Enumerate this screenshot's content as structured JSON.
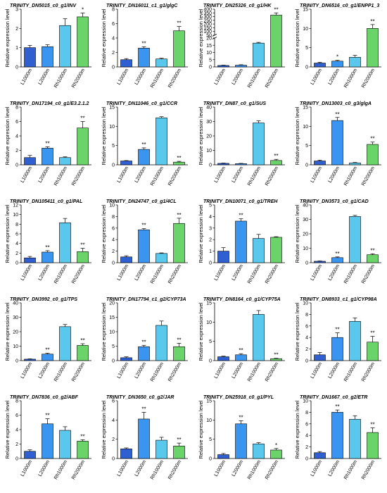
{
  "figure": {
    "ylabel": "Relative expression level",
    "categories": [
      "L1000m",
      "L2000m",
      "Rh1000m",
      "Rh2000m"
    ],
    "bar_colors": [
      "#2f5fd0",
      "#3a95f0",
      "#5ac8ec",
      "#6ad46a"
    ],
    "edge_color": "#000000"
  },
  "chart_data": [
    {
      "type": "bar",
      "title": "TRINITY_DN5015_c0_g1/INV",
      "categories": [
        "L1000m",
        "L2000m",
        "Rh1000m",
        "Rh2000m"
      ],
      "values": [
        1.0,
        1.05,
        2.15,
        2.6
      ],
      "errors": [
        0.12,
        0.1,
        0.35,
        0.2
      ],
      "significance": [
        "",
        "",
        "",
        "*"
      ],
      "ylim": [
        0,
        3
      ],
      "yticks": [
        0,
        1,
        2,
        3
      ]
    },
    {
      "type": "bar",
      "title": "TRINITY_DN16011_c1_g1/glgC",
      "categories": [
        "L1000m",
        "L2000m",
        "Rh1000m",
        "Rh2000m"
      ],
      "values": [
        1.0,
        2.6,
        1.1,
        5.0
      ],
      "errors": [
        0.15,
        0.2,
        0.1,
        0.6
      ],
      "significance": [
        "",
        "**",
        "",
        "**"
      ],
      "ylim": [
        0,
        8
      ],
      "yticks": [
        0,
        2,
        4,
        6,
        8
      ]
    },
    {
      "type": "bar",
      "title": "TRINITY_DN25326_c0_g1/HK",
      "categories": [
        "L1000m",
        "L2000m",
        "Rh1000m",
        "Rh2000m"
      ],
      "values": [
        1.0,
        1.2,
        16.5,
        320
      ],
      "errors": [
        0.2,
        0.3,
        0.5,
        30
      ],
      "significance": [
        "",
        "",
        "",
        "**"
      ],
      "ylim": [
        0,
        400
      ],
      "yticks": [
        0,
        5,
        10,
        15,
        20,
        50,
        100,
        150,
        200,
        250,
        300,
        350,
        400
      ],
      "axis_break": [
        20,
        50
      ]
    },
    {
      "type": "bar",
      "title": "TRINITY_DN6516_c0_g1/ENPP1_3",
      "categories": [
        "L1000m",
        "L2000m",
        "Rh1000m",
        "Rh2000m"
      ],
      "values": [
        1.0,
        1.5,
        2.5,
        10.0
      ],
      "errors": [
        0.2,
        0.2,
        0.5,
        1.0
      ],
      "significance": [
        "",
        "*",
        "",
        "**"
      ],
      "ylim": [
        0,
        15
      ],
      "yticks": [
        0,
        5,
        10,
        15
      ]
    },
    {
      "type": "bar",
      "title": "TRINITY_DN17194_c0_g1/E3.2.1.2",
      "categories": [
        "L1000m",
        "L2000m",
        "Rh1000m",
        "Rh2000m"
      ],
      "values": [
        1.0,
        2.3,
        1.0,
        5.1
      ],
      "errors": [
        0.3,
        0.2,
        0.1,
        0.9
      ],
      "significance": [
        "",
        "**",
        "",
        "**"
      ],
      "ylim": [
        0,
        8
      ],
      "yticks": [
        0,
        2,
        4,
        6,
        8
      ]
    },
    {
      "type": "bar",
      "title": "TRINITY_DN11046_c0_g1/CCR",
      "categories": [
        "L1000m",
        "L2000m",
        "Rh1000m",
        "Rh2000m"
      ],
      "values": [
        1.0,
        4.0,
        12.2,
        0.7
      ],
      "errors": [
        0.1,
        0.4,
        0.3,
        0.2
      ],
      "significance": [
        "",
        "**",
        "",
        "**"
      ],
      "ylim": [
        0,
        15
      ],
      "yticks": [
        0,
        5,
        10,
        15
      ]
    },
    {
      "type": "bar",
      "title": "TRINITY_DN87_c0_g1/SUS",
      "categories": [
        "L1000m",
        "L2000m",
        "Rh1000m",
        "Rh2000m"
      ],
      "values": [
        1.0,
        0.8,
        29.0,
        3.0
      ],
      "errors": [
        0.2,
        0.2,
        1.5,
        0.8
      ],
      "significance": [
        "",
        "",
        "",
        "**"
      ],
      "ylim": [
        0,
        40
      ],
      "yticks": [
        0,
        10,
        20,
        30,
        40
      ]
    },
    {
      "type": "bar",
      "title": "TRINITY_DN13003_c0_g3/glgA",
      "categories": [
        "L1000m",
        "L2000m",
        "Rh1000m",
        "Rh2000m"
      ],
      "values": [
        1.0,
        11.5,
        0.5,
        5.3
      ],
      "errors": [
        0.2,
        0.8,
        0.1,
        0.6
      ],
      "significance": [
        "",
        "**",
        "",
        "**"
      ],
      "ylim": [
        0,
        15
      ],
      "yticks": [
        0,
        5,
        10,
        15
      ]
    },
    {
      "type": "bar",
      "title": "TRINITY_DN105411_c0_g1/PAL",
      "categories": [
        "L1000m",
        "L2000m",
        "Rh1000m",
        "Rh2000m"
      ],
      "values": [
        1.0,
        2.2,
        8.3,
        2.3
      ],
      "errors": [
        0.3,
        0.3,
        0.9,
        0.7
      ],
      "significance": [
        "",
        "**",
        "",
        "**"
      ],
      "ylim": [
        0,
        12
      ],
      "yticks": [
        0,
        2,
        4,
        6,
        8,
        10,
        12
      ]
    },
    {
      "type": "bar",
      "title": "TRINITY_DN24747_c0_g1/4CL",
      "categories": [
        "L1000m",
        "L2000m",
        "Rh1000m",
        "Rh2000m"
      ],
      "values": [
        1.0,
        5.7,
        1.6,
        6.8
      ],
      "errors": [
        0.2,
        0.2,
        0.1,
        0.9
      ],
      "significance": [
        "",
        "**",
        "",
        "**"
      ],
      "ylim": [
        0,
        10
      ],
      "yticks": [
        0,
        2,
        4,
        6,
        8,
        10
      ]
    },
    {
      "type": "bar",
      "title": "TRINITY_DN10071_c0_g1/TREH",
      "categories": [
        "L1000m",
        "L2000m",
        "Rh1000m",
        "Rh2000m"
      ],
      "values": [
        1.0,
        3.6,
        2.1,
        2.2
      ],
      "errors": [
        0.3,
        0.2,
        0.35,
        0.05
      ],
      "significance": [
        "",
        "**",
        "",
        ""
      ],
      "ylim": [
        0,
        5
      ],
      "yticks": [
        0,
        1,
        2,
        3,
        4,
        5
      ]
    },
    {
      "type": "bar",
      "title": "TRINITY_DN3573_c0_g1/CAD",
      "categories": [
        "L1000m",
        "L2000m",
        "Rh1000m",
        "Rh2000m"
      ],
      "values": [
        1.0,
        3.5,
        32.0,
        5.5
      ],
      "errors": [
        0.2,
        0.5,
        0.8,
        0.7
      ],
      "significance": [
        "",
        "**",
        "",
        "**"
      ],
      "ylim": [
        0,
        40
      ],
      "yticks": [
        0,
        10,
        20,
        30,
        40
      ]
    },
    {
      "type": "bar",
      "title": "TRINITY_DN3992_c0_g1/TPS",
      "categories": [
        "L1000m",
        "L2000m",
        "Rh1000m",
        "Rh2000m"
      ],
      "values": [
        1.0,
        4.5,
        23.5,
        10.5
      ],
      "errors": [
        0.2,
        0.6,
        1.5,
        1.2
      ],
      "significance": [
        "",
        "**",
        "",
        "**"
      ],
      "ylim": [
        0,
        40
      ],
      "yticks": [
        0,
        10,
        20,
        30,
        40
      ]
    },
    {
      "type": "bar",
      "title": "TRINITY_DN17794_c1_g2/CYP73A",
      "categories": [
        "L1000m",
        "L2000m",
        "Rh1000m",
        "Rh2000m"
      ],
      "values": [
        1.0,
        4.8,
        12.2,
        4.8
      ],
      "errors": [
        0.3,
        0.5,
        1.5,
        1.2
      ],
      "significance": [
        "",
        "**",
        "",
        "**"
      ],
      "ylim": [
        0,
        20
      ],
      "yticks": [
        0,
        5,
        10,
        15,
        20
      ]
    },
    {
      "type": "bar",
      "title": "TRINITY_DN8164_c0_g1/CYP75A",
      "categories": [
        "L1000m",
        "L2000m",
        "Rh1000m",
        "Rh2000m"
      ],
      "values": [
        1.0,
        1.5,
        12.0,
        0.5
      ],
      "errors": [
        0.15,
        0.3,
        1.0,
        0.1
      ],
      "significance": [
        "",
        "**",
        "",
        "**"
      ],
      "ylim": [
        0,
        15
      ],
      "yticks": [
        0,
        5,
        10,
        15
      ]
    },
    {
      "type": "bar",
      "title": "TRINITY_DN8933_c1_g1/CYP98A",
      "categories": [
        "L1000m",
        "L2000m",
        "Rh1000m",
        "Rh2000m"
      ],
      "values": [
        1.0,
        4.0,
        6.8,
        3.2
      ],
      "errors": [
        0.4,
        0.8,
        0.6,
        1.0
      ],
      "significance": [
        "",
        "**",
        "",
        "**"
      ],
      "ylim": [
        0,
        10
      ],
      "yticks": [
        0,
        2,
        4,
        6,
        8,
        10
      ]
    },
    {
      "type": "bar",
      "title": "TRINITY_DN7836_c0_g2/ABF",
      "categories": [
        "L1000m",
        "L2000m",
        "Rh1000m",
        "Rh2000m"
      ],
      "values": [
        1.0,
        4.8,
        3.9,
        2.4
      ],
      "errors": [
        0.2,
        0.7,
        0.5,
        0.2
      ],
      "significance": [
        "",
        "**",
        "",
        "**"
      ],
      "ylim": [
        0,
        8
      ],
      "yticks": [
        0,
        2,
        4,
        6,
        8
      ]
    },
    {
      "type": "bar",
      "title": "TRINITY_DN3650_c0_g2/JAR",
      "categories": [
        "L1000m",
        "L2000m",
        "Rh1000m",
        "Rh2000m"
      ],
      "values": [
        1.0,
        4.1,
        1.9,
        1.3
      ],
      "errors": [
        0.1,
        0.7,
        0.3,
        0.3
      ],
      "significance": [
        "",
        "**",
        "",
        "**"
      ],
      "ylim": [
        0,
        6
      ],
      "yticks": [
        0,
        2,
        4,
        6
      ]
    },
    {
      "type": "bar",
      "title": "TRINITY_DN25918_c0_g1/PYL",
      "categories": [
        "L1000m",
        "L2000m",
        "Rh1000m",
        "Rh2000m"
      ],
      "values": [
        1.0,
        9.0,
        3.8,
        2.2
      ],
      "errors": [
        0.3,
        0.8,
        0.3,
        0.4
      ],
      "significance": [
        "",
        "**",
        "",
        "*"
      ],
      "ylim": [
        0,
        15
      ],
      "yticks": [
        0,
        5,
        10,
        15
      ]
    },
    {
      "type": "bar",
      "title": "TRINITY_DN1667_c0_g2/ETR",
      "categories": [
        "L1000m",
        "L2000m",
        "Rh1000m",
        "Rh2000m"
      ],
      "values": [
        1.0,
        8.0,
        6.8,
        4.5
      ],
      "errors": [
        0.2,
        0.4,
        0.6,
        0.8
      ],
      "significance": [
        "",
        "**",
        "",
        "**"
      ],
      "ylim": [
        0,
        10
      ],
      "yticks": [
        0,
        2,
        4,
        6,
        8,
        10
      ]
    }
  ]
}
